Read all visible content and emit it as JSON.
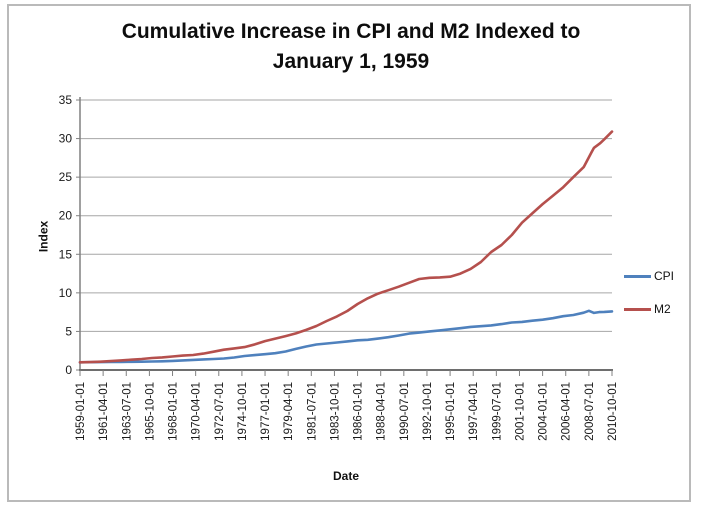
{
  "title": {
    "line1": "Cumulative Increase in CPI and M2 Indexed to",
    "line2": "January 1, 1959"
  },
  "legend": {
    "items": [
      {
        "label": "CPI",
        "color": "#4f81bd"
      },
      {
        "label": "M2",
        "color": "#b5504d"
      }
    ]
  },
  "chart_data": {
    "type": "line",
    "title": "Cumulative Increase in CPI and M2 Indexed to January 1, 1959",
    "xlabel": "Date",
    "ylabel": "Index",
    "ylim": [
      0,
      35
    ],
    "y_ticks": [
      0,
      5,
      10,
      15,
      20,
      25,
      30,
      35
    ],
    "grid": "horizontal",
    "legend_position": "right",
    "xlim_decimal_years": [
      1959.0,
      2010.75
    ],
    "x_tick_interval_months": 27,
    "x_tick_labels": [
      "1959-01-01",
      "1961-04-01",
      "1963-07-01",
      "1965-10-01",
      "1968-01-01",
      "1970-04-01",
      "1972-07-01",
      "1974-10-01",
      "1977-01-01",
      "1979-04-01",
      "1981-07-01",
      "1983-10-01",
      "1986-01-01",
      "1988-04-01",
      "1990-07-01",
      "1992-10-01",
      "1995-01-01",
      "1997-04-01",
      "1999-07-01",
      "2001-10-01",
      "2004-01-01",
      "2006-04-01",
      "2008-07-01",
      "2010-10-01"
    ],
    "series": [
      {
        "name": "CPI",
        "color": "#4f81bd",
        "points": [
          [
            1959,
            1.0
          ],
          [
            1960,
            1.01
          ],
          [
            1961,
            1.03
          ],
          [
            1962,
            1.04
          ],
          [
            1963,
            1.05
          ],
          [
            1964,
            1.06
          ],
          [
            1965,
            1.08
          ],
          [
            1966,
            1.1
          ],
          [
            1967,
            1.13
          ],
          [
            1968,
            1.18
          ],
          [
            1969,
            1.24
          ],
          [
            1970,
            1.31
          ],
          [
            1971,
            1.38
          ],
          [
            1972,
            1.43
          ],
          [
            1973,
            1.49
          ],
          [
            1974,
            1.62
          ],
          [
            1975,
            1.81
          ],
          [
            1976,
            1.93
          ],
          [
            1977,
            2.05
          ],
          [
            1978,
            2.18
          ],
          [
            1979,
            2.4
          ],
          [
            1980,
            2.73
          ],
          [
            1981,
            3.05
          ],
          [
            1982,
            3.3
          ],
          [
            1983,
            3.43
          ],
          [
            1984,
            3.57
          ],
          [
            1985,
            3.71
          ],
          [
            1986,
            3.85
          ],
          [
            1987,
            3.91
          ],
          [
            1988,
            4.07
          ],
          [
            1989,
            4.25
          ],
          [
            1990,
            4.47
          ],
          [
            1991,
            4.72
          ],
          [
            1992,
            4.85
          ],
          [
            1993,
            5.0
          ],
          [
            1994,
            5.13
          ],
          [
            1995,
            5.27
          ],
          [
            1996,
            5.42
          ],
          [
            1997,
            5.59
          ],
          [
            1998,
            5.68
          ],
          [
            1999,
            5.78
          ],
          [
            2000,
            5.95
          ],
          [
            2001,
            6.16
          ],
          [
            2002,
            6.24
          ],
          [
            2003,
            6.39
          ],
          [
            2004,
            6.52
          ],
          [
            2005,
            6.72
          ],
          [
            2006,
            6.98
          ],
          [
            2007,
            7.13
          ],
          [
            2008,
            7.43
          ],
          [
            2008.5,
            7.68
          ],
          [
            2009,
            7.4
          ],
          [
            2009.5,
            7.5
          ],
          [
            2010,
            7.53
          ],
          [
            2010.75,
            7.6
          ]
        ]
      },
      {
        "name": "M2",
        "color": "#b5504d",
        "points": [
          [
            1959,
            1.0
          ],
          [
            1960,
            1.03
          ],
          [
            1961,
            1.08
          ],
          [
            1962,
            1.16
          ],
          [
            1963,
            1.24
          ],
          [
            1964,
            1.33
          ],
          [
            1965,
            1.43
          ],
          [
            1966,
            1.55
          ],
          [
            1967,
            1.63
          ],
          [
            1968,
            1.75
          ],
          [
            1969,
            1.87
          ],
          [
            1970,
            1.95
          ],
          [
            1971,
            2.12
          ],
          [
            1972,
            2.37
          ],
          [
            1973,
            2.63
          ],
          [
            1974,
            2.8
          ],
          [
            1975,
            2.97
          ],
          [
            1976,
            3.32
          ],
          [
            1977,
            3.74
          ],
          [
            1978,
            4.07
          ],
          [
            1979,
            4.4
          ],
          [
            1980,
            4.75
          ],
          [
            1981,
            5.2
          ],
          [
            1982,
            5.7
          ],
          [
            1983,
            6.35
          ],
          [
            1984,
            6.95
          ],
          [
            1985,
            7.65
          ],
          [
            1986,
            8.55
          ],
          [
            1987,
            9.3
          ],
          [
            1988,
            9.9
          ],
          [
            1989,
            10.35
          ],
          [
            1990,
            10.8
          ],
          [
            1991,
            11.3
          ],
          [
            1992,
            11.8
          ],
          [
            1993,
            11.95
          ],
          [
            1994,
            12.0
          ],
          [
            1995,
            12.1
          ],
          [
            1996,
            12.5
          ],
          [
            1997,
            13.1
          ],
          [
            1998,
            14.0
          ],
          [
            1999,
            15.3
          ],
          [
            2000,
            16.2
          ],
          [
            2001,
            17.5
          ],
          [
            2002,
            19.1
          ],
          [
            2003,
            20.3
          ],
          [
            2004,
            21.5
          ],
          [
            2005,
            22.6
          ],
          [
            2006,
            23.7
          ],
          [
            2007,
            25.0
          ],
          [
            2008,
            26.3
          ],
          [
            2008.75,
            28.2
          ],
          [
            2009,
            28.8
          ],
          [
            2009.6,
            29.4
          ],
          [
            2010,
            29.9
          ],
          [
            2010.75,
            30.9
          ]
        ]
      }
    ]
  }
}
